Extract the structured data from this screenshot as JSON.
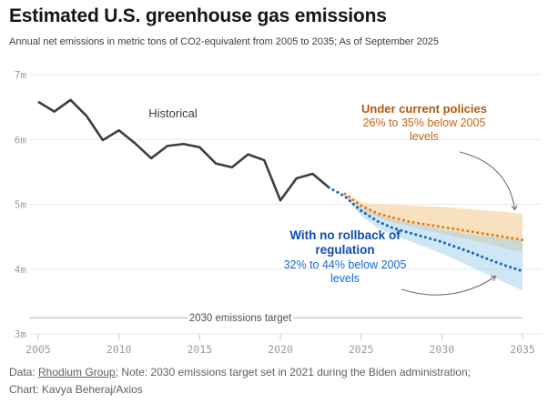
{
  "header": {
    "title": "Estimated U.S. greenhouse gas emissions",
    "subtitle": "Annual net emissions in metric tons of CO2-equivalent from 2005 to 2035; As of September 2025"
  },
  "footer": {
    "prefix": "Data: ",
    "link": "Rhodium Group",
    "rest": "; Note: 2030 emissions target set in 2021 during the Biden administration;",
    "line2": "Chart: Kavya Beheraj/Axios"
  },
  "chart_data": {
    "type": "line",
    "title": "Estimated U.S. greenhouse gas emissions",
    "ylabel": "metric tons of CO2-equivalent (millions)",
    "xlim": [
      2005,
      2035
    ],
    "ylim": [
      3,
      7
    ],
    "grid": "horizontal",
    "y_axis": {
      "ticks": [
        {
          "value": 7,
          "label": "7m"
        },
        {
          "value": 6,
          "label": "6m"
        },
        {
          "value": 5,
          "label": "5m"
        },
        {
          "value": 4,
          "label": "4m"
        },
        {
          "value": 3,
          "label": "3m"
        }
      ]
    },
    "x_axis": {
      "ticks": [
        2005,
        2010,
        2015,
        2020,
        2025,
        2030,
        2035
      ]
    },
    "series": [
      {
        "name": "historical",
        "color": "#3e3e3e",
        "style": "solid",
        "width": 2.6,
        "years": [
          2005,
          2006,
          2007,
          2008,
          2009,
          2010,
          2011,
          2012,
          2013,
          2014,
          2015,
          2016,
          2017,
          2018,
          2019,
          2020,
          2021,
          2022,
          2023
        ],
        "values": [
          6.58,
          6.43,
          6.61,
          6.36,
          5.99,
          6.14,
          5.94,
          5.71,
          5.9,
          5.93,
          5.88,
          5.63,
          5.57,
          5.77,
          5.68,
          5.06,
          5.4,
          5.47,
          5.26
        ]
      },
      {
        "name": "no-rollback-of-regulation",
        "color": "#1763b1",
        "style": "dotted",
        "width": 3,
        "years": [
          2023,
          2024,
          2025,
          2026,
          2027,
          2028,
          2029,
          2030,
          2031,
          2032,
          2033,
          2034,
          2035
        ],
        "values": [
          5.26,
          5.12,
          4.9,
          4.74,
          4.63,
          4.56,
          4.49,
          4.42,
          4.33,
          4.24,
          4.14,
          4.05,
          3.97
        ]
      },
      {
        "name": "under-current-policies",
        "color": "#e8791a",
        "style": "dotted",
        "width": 3,
        "years": [
          2024,
          2025,
          2026,
          2027,
          2028,
          2029,
          2030,
          2031,
          2032,
          2033,
          2034,
          2035
        ],
        "values": [
          5.16,
          4.98,
          4.86,
          4.79,
          4.73,
          4.69,
          4.65,
          4.61,
          4.57,
          4.53,
          4.49,
          4.45
        ]
      }
    ],
    "bands": [
      {
        "name": "current-policies-range",
        "color": "#f7dfba",
        "opacity": 0.95,
        "years": [
          2024,
          2025,
          2026,
          2027,
          2028,
          2029,
          2030,
          2031,
          2032,
          2033,
          2034,
          2035
        ],
        "top": [
          5.16,
          5.03,
          5.0,
          4.99,
          4.98,
          4.97,
          4.96,
          4.94,
          4.92,
          4.9,
          4.88,
          4.85
        ],
        "bottom": [
          5.16,
          4.92,
          4.8,
          4.72,
          4.66,
          4.6,
          4.55,
          4.49,
          4.44,
          4.38,
          4.32,
          4.26
        ]
      },
      {
        "name": "no-rollback-range",
        "color": "#a3cfe9",
        "opacity": 0.52,
        "years": [
          2024,
          2025,
          2026,
          2027,
          2028,
          2029,
          2030,
          2031,
          2032,
          2033,
          2034,
          2035
        ],
        "top": [
          5.12,
          4.96,
          4.84,
          4.76,
          4.71,
          4.66,
          4.61,
          4.57,
          4.53,
          4.5,
          4.47,
          4.45
        ],
        "bottom": [
          5.12,
          4.82,
          4.64,
          4.52,
          4.43,
          4.34,
          4.24,
          4.13,
          4.01,
          3.9,
          3.78,
          3.67
        ]
      }
    ],
    "target_line": {
      "label": "2030 emissions target",
      "value": 3.25
    },
    "annotations": {
      "historical": "Historical",
      "current_policies": {
        "title": "Under current policies",
        "detail": "26% to 35% below 2005 levels",
        "color": "#b25a10"
      },
      "no_rollback": {
        "title": "With no rollback of regulation",
        "detail": "32% to 44% below 2005 levels",
        "color": "#0c4db0"
      }
    }
  }
}
